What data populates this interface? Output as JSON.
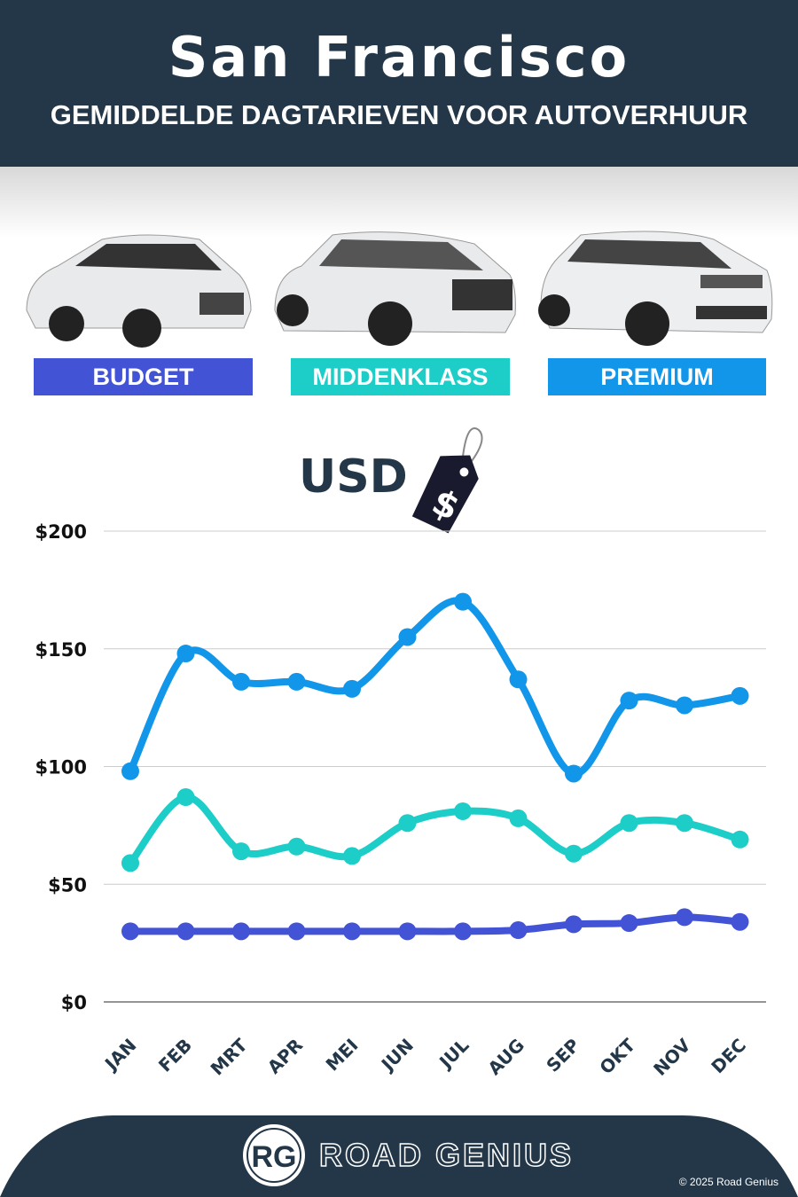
{
  "header": {
    "title": "San Francisco",
    "subtitle": "GEMIDDELDE DAGTARIEVEN VOOR AUTOVERHUUR"
  },
  "categories_legend": [
    {
      "label": "BUDGET",
      "color": "#4353d6"
    },
    {
      "label": "MIDDENKLASS",
      "color": "#1dcdc8"
    },
    {
      "label": "PREMIUM",
      "color": "#1196ea"
    }
  ],
  "currency": {
    "label": "USD",
    "icon": "price-tag-dollar-icon",
    "symbol": "$"
  },
  "chart_data": {
    "type": "line",
    "categories": [
      "JAN",
      "FEB",
      "MRT",
      "APR",
      "MEI",
      "JUN",
      "JUL",
      "AUG",
      "SEP",
      "OKT",
      "NOV",
      "DEC"
    ],
    "ylim": [
      0,
      200
    ],
    "yticks": [
      0,
      50,
      100,
      150,
      200
    ],
    "ytick_labels": [
      "$0",
      "$50",
      "$100",
      "$150",
      "$200"
    ],
    "grid": true,
    "series": [
      {
        "name": "PREMIUM",
        "color": "#1196ea",
        "values": [
          98,
          148,
          136,
          136,
          133,
          155,
          170,
          137,
          97,
          128,
          126,
          130
        ]
      },
      {
        "name": "MIDDENKLASS",
        "color": "#1dcdc8",
        "values": [
          59,
          87,
          64,
          66,
          62,
          76,
          81,
          78,
          63,
          76,
          76,
          69
        ]
      },
      {
        "name": "BUDGET",
        "color": "#4353d6",
        "values": [
          30,
          30,
          30,
          30,
          30,
          30,
          30,
          30.5,
          33,
          33.5,
          36,
          34
        ]
      }
    ]
  },
  "footer": {
    "brand": "ROAD GENIUS",
    "logo_text": "RG",
    "copyright": "© 2025 Road Genius",
    "color": "#233748"
  }
}
